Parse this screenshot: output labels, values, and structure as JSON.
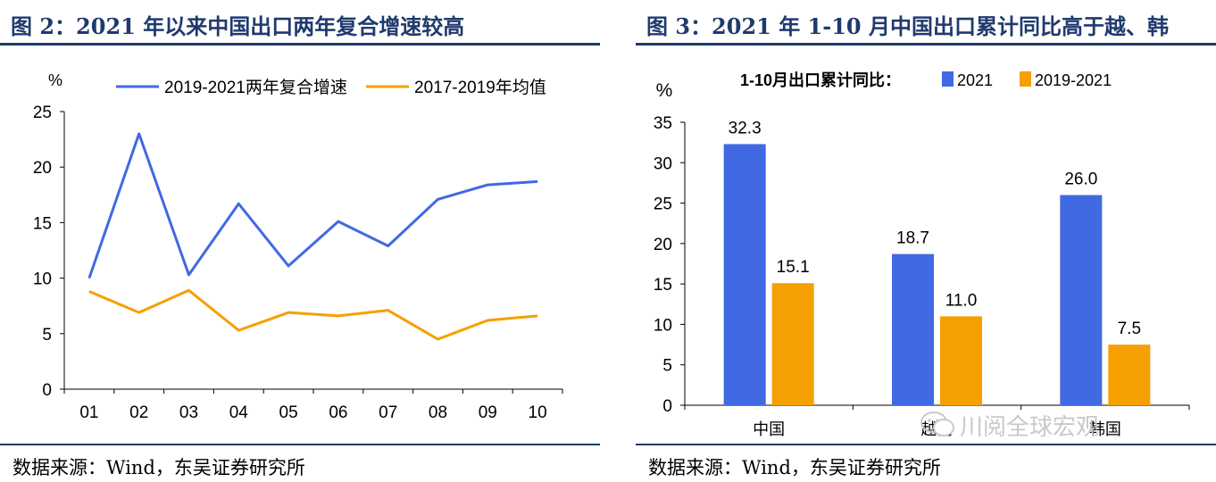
{
  "left": {
    "title": "图 2：2021 年以来中国出口两年复合增速较高",
    "source": "数据来源：Wind，东吴证券研究所"
  },
  "right": {
    "title": "图 3：2021 年 1-10 月中国出口累计同比高于越、韩",
    "source": "数据来源：Wind，东吴证券研究所",
    "watermark": "川阅全球宏观"
  },
  "chart_data": [
    {
      "type": "line",
      "ylabel": "%",
      "ylim": [
        0,
        25
      ],
      "yticks": [
        0,
        5,
        10,
        15,
        20,
        25
      ],
      "categories": [
        "01",
        "02",
        "03",
        "04",
        "05",
        "06",
        "07",
        "08",
        "09",
        "10"
      ],
      "legend_position": "top",
      "series": [
        {
          "name": "2019-2021两年复合增速",
          "color": "#4169e1",
          "values": [
            10.0,
            23.0,
            10.3,
            16.7,
            11.1,
            15.1,
            12.9,
            17.1,
            18.4,
            18.7
          ]
        },
        {
          "name": "2017-2019年均值",
          "color": "#f5a000",
          "values": [
            8.8,
            6.9,
            8.9,
            5.3,
            6.9,
            6.6,
            7.1,
            4.5,
            6.2,
            6.6
          ]
        }
      ]
    },
    {
      "type": "bar",
      "ylabel": "%",
      "ylim": [
        0,
        35
      ],
      "yticks": [
        0,
        5,
        10,
        15,
        20,
        25,
        30,
        35
      ],
      "legend_title": "1-10月出口累计同比：",
      "legend_position": "top",
      "categories": [
        "中国",
        "越南",
        "韩国"
      ],
      "series": [
        {
          "name": "2021",
          "color": "#4169e1",
          "values": [
            32.3,
            18.7,
            26.0
          ],
          "labels": [
            "32.3",
            "18.7",
            "26.0"
          ]
        },
        {
          "name": "2019-2021",
          "color": "#f5a000",
          "values": [
            15.1,
            11.0,
            7.5
          ],
          "labels": [
            "15.1",
            "11.0",
            "7.5"
          ]
        }
      ]
    }
  ]
}
